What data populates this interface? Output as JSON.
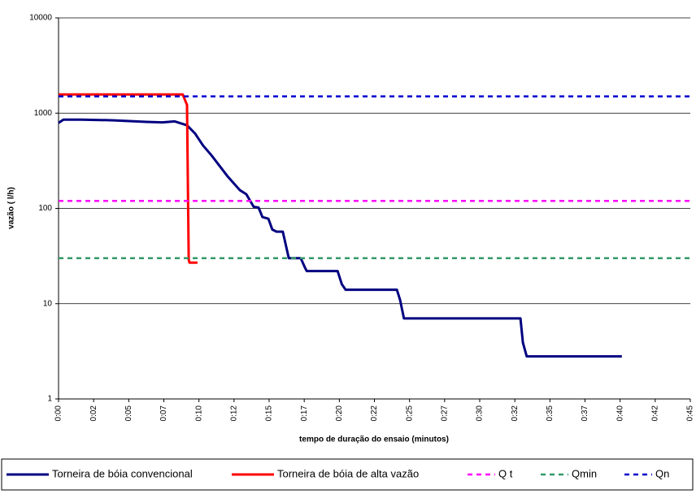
{
  "chart_data": {
    "type": "line",
    "x_label": "tempo de duração do ensaio (minutos)",
    "y_label": "vazão ( l/h)",
    "y_log": true,
    "grid": true,
    "ylim": [
      1,
      10000
    ],
    "yticks": [
      1,
      10,
      100,
      1000,
      10000
    ],
    "xlim": [
      0,
      18
    ],
    "xticks": [
      {
        "value": 0,
        "label": "0:00"
      },
      {
        "value": 1,
        "label": "0:02"
      },
      {
        "value": 2,
        "label": "0:05"
      },
      {
        "value": 3,
        "label": "0:07"
      },
      {
        "value": 4,
        "label": "0:10"
      },
      {
        "value": 5,
        "label": "0:12"
      },
      {
        "value": 6,
        "label": "0:15"
      },
      {
        "value": 7,
        "label": "0:17"
      },
      {
        "value": 8,
        "label": "0:20"
      },
      {
        "value": 9,
        "label": "0:22"
      },
      {
        "value": 10,
        "label": "0:25"
      },
      {
        "value": 11,
        "label": "0:27"
      },
      {
        "value": 12,
        "label": "0:30"
      },
      {
        "value": 13,
        "label": "0:32"
      },
      {
        "value": 14,
        "label": "0:35"
      },
      {
        "value": 15,
        "label": "0:37"
      },
      {
        "value": 16,
        "label": "0:40"
      },
      {
        "value": 17,
        "label": "0:42"
      },
      {
        "value": 18,
        "label": "0:45"
      }
    ],
    "legend": "bottom",
    "series": [
      {
        "name": "Torneira de bóia convencional",
        "color": "#000080",
        "x": [
          0,
          0.14,
          0.65,
          1.57,
          2.5,
          2.96,
          3.31,
          3.66,
          3.89,
          4.12,
          4.36,
          4.82,
          5.17,
          5.35,
          5.56,
          5.7,
          5.81,
          5.98,
          6.09,
          6.21,
          6.39,
          6.56,
          6.9,
          7.02,
          7.07,
          7.95,
          8.07,
          8.18,
          9.64,
          9.73,
          9.84,
          13.16,
          13.23,
          13.34,
          16.05
        ],
        "values": [
          790,
          855,
          855,
          840,
          810,
          800,
          820,
          745,
          612,
          456,
          360,
          216,
          155,
          141,
          104,
          102,
          81,
          78,
          60,
          57,
          57,
          30,
          30,
          24,
          22,
          22,
          16,
          14,
          14,
          11,
          7,
          7,
          3.9,
          2.8,
          2.8
        ]
      },
      {
        "name": "Torneira de bóia de alta vazão",
        "color": "#ff0000",
        "x": [
          0,
          3.54,
          3.66,
          3.71,
          3.73,
          3.96
        ],
        "values": [
          1570,
          1570,
          1217,
          29,
          27,
          27
        ]
      },
      {
        "name": "Q t",
        "color": "#ff00ff",
        "value": 120,
        "dashed": true
      },
      {
        "name": "Qmin",
        "color": "#339966",
        "value": 30,
        "dashed": true
      },
      {
        "name": "Qn",
        "color": "#0000cc",
        "value": 1500,
        "dashed": true
      }
    ]
  }
}
